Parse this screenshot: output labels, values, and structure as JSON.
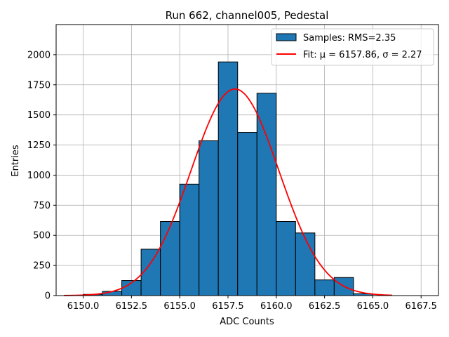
{
  "chart_data": {
    "type": "bar",
    "title": "Run 662, channel005, Pedestal",
    "xlabel": "ADC Counts",
    "ylabel": "Entries",
    "xlim": [
      6148.6,
      6168.4
    ],
    "ylim": [
      0,
      2250
    ],
    "xticks": [
      6150.0,
      6152.5,
      6155.0,
      6157.5,
      6160.0,
      6162.5,
      6165.0,
      6167.5
    ],
    "xtick_labels": [
      "6150.0",
      "6152.5",
      "6155.0",
      "6157.5",
      "6160.0",
      "6162.5",
      "6165.0",
      "6167.5"
    ],
    "yticks": [
      0,
      250,
      500,
      750,
      1000,
      1250,
      1500,
      1750,
      2000
    ],
    "ytick_labels": [
      "0",
      "250",
      "500",
      "750",
      "1000",
      "1250",
      "1500",
      "1750",
      "2000"
    ],
    "grid": true,
    "legend_position": "top-right",
    "histogram": {
      "name": "Samples: RMS=2.35",
      "color": "#1f77b4",
      "edge_color": "#000000",
      "bin_edges": [
        6150,
        6151,
        6152,
        6153,
        6154,
        6155,
        6156,
        6157,
        6158,
        6159,
        6160,
        6161,
        6162,
        6163,
        6164,
        6165
      ],
      "counts": [
        10,
        35,
        125,
        385,
        615,
        925,
        1285,
        1940,
        1355,
        1680,
        615,
        520,
        130,
        150,
        15
      ]
    },
    "fit": {
      "name": "Fit: μ = 6157.86, σ = 2.27",
      "color": "#ff0000",
      "mu": 6157.86,
      "sigma": 2.27,
      "amplitude": 1715,
      "x_range": [
        6149.0,
        6166.0
      ]
    }
  }
}
